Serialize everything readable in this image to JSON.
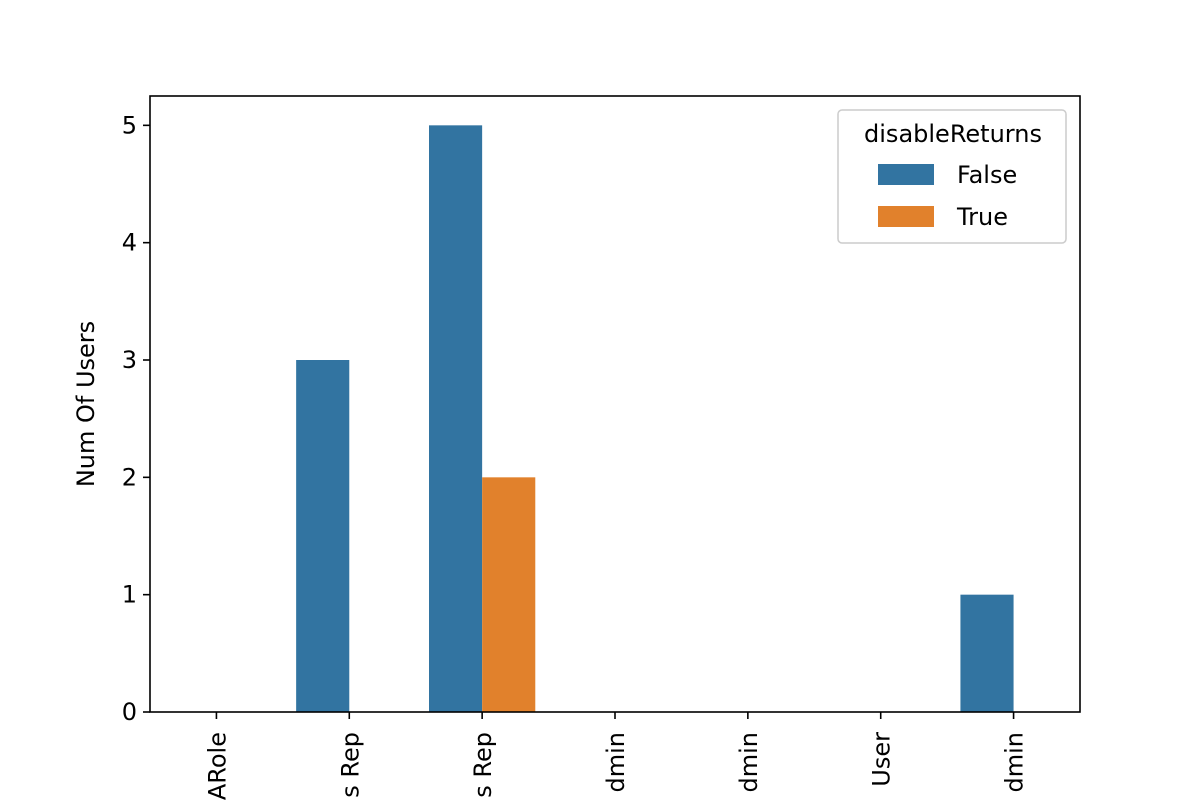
{
  "chart_data": {
    "type": "bar",
    "title": "",
    "xlabel": "",
    "ylabel": "Num Of Users",
    "categories": [
      "ARole",
      "s Rep",
      "s Rep",
      "dmin",
      "dmin",
      "User",
      "dmin"
    ],
    "series": [
      {
        "name": "False",
        "color": "#3274a1",
        "values": [
          0,
          3,
          5,
          0,
          0,
          0,
          1
        ]
      },
      {
        "name": "True",
        "color": "#e1812c",
        "values": [
          0,
          0,
          2,
          0,
          0,
          0,
          0
        ]
      }
    ],
    "ylim": [
      0,
      5.25
    ],
    "yticks": [
      "0",
      "1",
      "2",
      "3",
      "4",
      "5"
    ],
    "grid": false,
    "legend": {
      "title": "disableReturns",
      "placement": "top-right",
      "entries": [
        "False",
        "True"
      ]
    }
  }
}
